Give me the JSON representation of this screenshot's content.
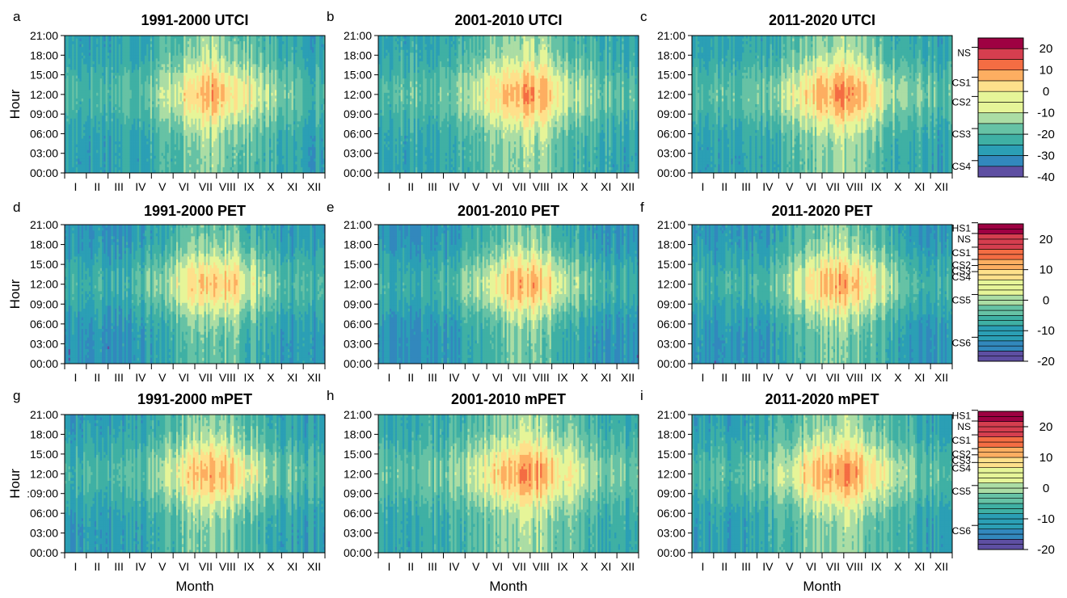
{
  "figure": {
    "ylabel": "Hour",
    "xlabel": "Month",
    "hour_ticks": [
      "00:00",
      "03:00",
      "06:00",
      "09:00",
      "12:00",
      "15:00",
      "18:00",
      "21:00"
    ],
    "hour_ticks_row3": [
      "00:00",
      "03:00",
      "06:00",
      ":09:00",
      "12:00",
      "15:00",
      "18:00",
      "21:00"
    ],
    "month_ticks": [
      "I",
      "II",
      "III",
      "IV",
      "V",
      "VI",
      "VII",
      "VIII",
      "IX",
      "X",
      "XI",
      "XII"
    ]
  },
  "colors": [
    "#5e4fa2",
    "#3288bd",
    "#2b9fb5",
    "#3fb0a4",
    "#66c2a5",
    "#abdda4",
    "#e6f598",
    "#fee08b",
    "#fdae61",
    "#f46d43",
    "#d53e4f",
    "#9e0142"
  ],
  "chart_data": [
    {
      "type": "heatmap",
      "panel": "a",
      "title": "1991-2000 UTCI",
      "index": "UTCI",
      "x": "month",
      "y": "hour",
      "peak_month": 7.4,
      "peak_hour": 12,
      "max_intensity": 0.78,
      "min_intensity": 0.22
    },
    {
      "type": "heatmap",
      "panel": "b",
      "title": "2001-2010 UTCI",
      "index": "UTCI",
      "x": "month",
      "y": "hour",
      "peak_month": 7.2,
      "peak_hour": 12,
      "max_intensity": 0.82,
      "min_intensity": 0.24
    },
    {
      "type": "heatmap",
      "panel": "c",
      "title": "2011-2020 UTCI",
      "index": "UTCI",
      "x": "month",
      "y": "hour",
      "peak_month": 7.3,
      "peak_hour": 12,
      "max_intensity": 0.86,
      "min_intensity": 0.22
    },
    {
      "type": "heatmap",
      "panel": "d",
      "title": "1991-2000 PET",
      "index": "PET",
      "x": "month",
      "y": "hour",
      "peak_month": 7.4,
      "peak_hour": 12,
      "max_intensity": 0.78,
      "min_intensity": 0.16
    },
    {
      "type": "heatmap",
      "panel": "e",
      "title": "2001-2010 PET",
      "index": "PET",
      "x": "month",
      "y": "hour",
      "peak_month": 7.3,
      "peak_hour": 12,
      "max_intensity": 0.8,
      "min_intensity": 0.16
    },
    {
      "type": "heatmap",
      "panel": "f",
      "title": "2011-2020 PET",
      "index": "PET",
      "x": "month",
      "y": "hour",
      "peak_month": 7.4,
      "peak_hour": 12,
      "max_intensity": 0.8,
      "min_intensity": 0.17
    },
    {
      "type": "heatmap",
      "panel": "g",
      "title": "1991-2000 mPET",
      "index": "mPET",
      "x": "month",
      "y": "hour",
      "peak_month": 7.4,
      "peak_hour": 12,
      "max_intensity": 0.8,
      "min_intensity": 0.2
    },
    {
      "type": "heatmap",
      "panel": "h",
      "title": "2001-2010 mPET",
      "index": "mPET",
      "x": "month",
      "y": "hour",
      "peak_month": 7.3,
      "peak_hour": 12,
      "max_intensity": 0.84,
      "min_intensity": 0.24
    },
    {
      "type": "heatmap",
      "panel": "i",
      "title": "2011-2020 mPET",
      "index": "mPET",
      "x": "month",
      "y": "hour",
      "peak_month": 7.3,
      "peak_hour": 12,
      "max_intensity": 0.86,
      "min_intensity": 0.22
    }
  ],
  "colorbars": [
    {
      "index": "UTCI",
      "range": [
        -40,
        25
      ],
      "ticks": [
        20,
        10,
        0,
        -10,
        -20,
        -30,
        -40
      ],
      "classes": [
        "NS",
        "CS1",
        "CS2",
        "CS3",
        "CS4"
      ],
      "class_values": [
        18,
        4,
        -5,
        -20,
        -35
      ]
    },
    {
      "index": "PET",
      "range": [
        -20,
        25
      ],
      "ticks": [
        20,
        10,
        0,
        -10,
        -20
      ],
      "classes": [
        "HS1",
        "NS",
        "CS1",
        "CS2",
        "CS3",
        "CS4",
        "CS5",
        "CS6"
      ],
      "class_values": [
        23.5,
        20,
        15.5,
        11.5,
        9.5,
        7.5,
        0,
        -14
      ]
    },
    {
      "index": "mPET",
      "range": [
        -20,
        25
      ],
      "ticks": [
        20,
        10,
        0,
        -10,
        -20
      ],
      "classes": [
        "HS1",
        "NS",
        "CS1",
        "CS2",
        "CS3",
        "CS4",
        "CS5",
        "CS6"
      ],
      "class_values": [
        23.5,
        20,
        15.5,
        11,
        9,
        6.5,
        -1,
        -14
      ]
    }
  ]
}
